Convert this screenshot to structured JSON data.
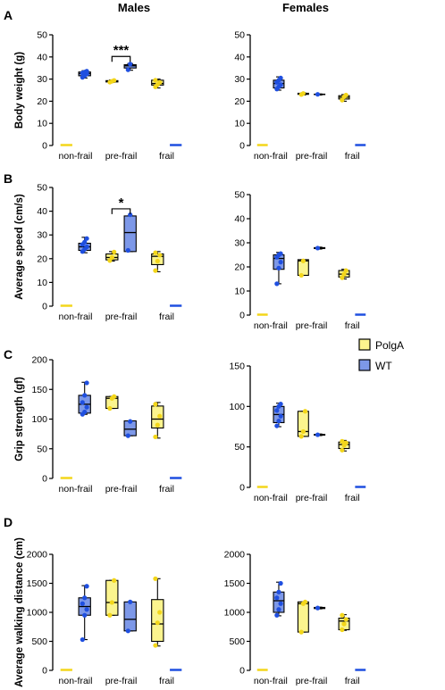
{
  "column_titles": [
    "Males",
    "Females"
  ],
  "row_letters": [
    "A",
    "B",
    "C",
    "D"
  ],
  "legend": [
    {
      "label": "PolgA",
      "color": "#fbf48e"
    },
    {
      "label": "WT",
      "color": "#7d98e8"
    }
  ],
  "colors": {
    "polga_fill": "#fbf48e",
    "polga_point": "#f3d61a",
    "wt_fill": "#7d98e8",
    "wt_point": "#1f4fe0"
  },
  "chart_data": [
    {
      "type": "box",
      "panel": "A",
      "sex": "Males",
      "ylabel": "Body weight (g)",
      "ylim": [
        0,
        50
      ],
      "yticks": [
        0,
        10,
        20,
        30,
        40,
        50
      ],
      "categories": [
        "non-frail",
        "pre-frail",
        "frail"
      ],
      "series": [
        {
          "name": "PolgA",
          "groups": [
            {
              "box": [
                0,
                0,
                0,
                0,
                0
              ],
              "points": []
            },
            {
              "box": [
                28.5,
                28.7,
                29,
                29.3,
                29.6
              ],
              "points": [
                28.6,
                29,
                29.4
              ]
            },
            {
              "box": [
                26,
                27.3,
                28,
                29.5,
                30
              ],
              "points": [
                26.5,
                27.5,
                28.5,
                29.5
              ]
            }
          ]
        },
        {
          "name": "WT",
          "groups": [
            {
              "box": [
                30.5,
                31.5,
                32.5,
                33.2,
                33.8
              ],
              "points": [
                30.8,
                31.5,
                32.3,
                32.8,
                33.2,
                33.6
              ]
            },
            {
              "box": [
                34,
                35,
                36,
                36.5,
                37
              ],
              "points": [
                34.2,
                36.8
              ]
            },
            {
              "box": [
                0,
                0,
                0,
                0,
                0
              ],
              "points": []
            }
          ]
        }
      ],
      "annotations": [
        {
          "text": "***",
          "between": "pre-frail"
        }
      ]
    },
    {
      "type": "box",
      "panel": "A",
      "sex": "Females",
      "ylabel": "",
      "ylim": [
        0,
        50
      ],
      "yticks": [
        0,
        10,
        20,
        30,
        40,
        50
      ],
      "categories": [
        "non-frail",
        "pre-frail",
        "frail"
      ],
      "series": [
        {
          "name": "PolgA",
          "groups": [
            {
              "box": [
                0,
                0,
                0,
                0,
                0
              ],
              "points": []
            },
            {
              "box": [
                22.8,
                23.1,
                23.4,
                23.6,
                23.8
              ],
              "points": [
                23,
                23.5
              ]
            },
            {
              "box": [
                20,
                21,
                21.8,
                22.5,
                23
              ],
              "points": [
                20.5,
                22,
                22.8
              ]
            }
          ]
        },
        {
          "name": "WT",
          "groups": [
            {
              "box": [
                25,
                26,
                28,
                29.5,
                31
              ],
              "points": [
                25.5,
                26.5,
                27.5,
                28.5,
                29.5,
                30.5
              ]
            },
            {
              "box": [
                22.8,
                23,
                23.1,
                23.2,
                23.3
              ],
              "points": [
                23.1
              ]
            },
            {
              "box": [
                0,
                0,
                0,
                0,
                0
              ],
              "points": []
            }
          ]
        }
      ],
      "annotations": []
    },
    {
      "type": "box",
      "panel": "B",
      "sex": "Males",
      "ylabel": "Average speed (cm/s)",
      "ylim": [
        0,
        50
      ],
      "yticks": [
        0,
        10,
        20,
        30,
        40,
        50
      ],
      "categories": [
        "non-frail",
        "pre-frail",
        "frail"
      ],
      "series": [
        {
          "name": "PolgA",
          "groups": [
            {
              "box": [
                0,
                0,
                0,
                0,
                0
              ],
              "points": []
            },
            {
              "box": [
                19,
                19.5,
                20.5,
                22,
                23
              ],
              "points": [
                19.2,
                20.5,
                22.8
              ]
            },
            {
              "box": [
                14.5,
                17.5,
                21,
                22,
                23
              ],
              "points": [
                15,
                19,
                21.5,
                22.5
              ]
            }
          ]
        },
        {
          "name": "WT",
          "groups": [
            {
              "box": [
                22.5,
                23.5,
                25,
                26.5,
                29
              ],
              "points": [
                23,
                24,
                25,
                26,
                27,
                28.5
              ]
            },
            {
              "box": [
                23,
                23,
                31,
                38,
                38
              ],
              "points": [
                23.5,
                38.5
              ]
            },
            {
              "box": [
                0,
                0,
                0,
                0,
                0
              ],
              "points": []
            }
          ]
        }
      ],
      "annotations": [
        {
          "text": "*",
          "between": "pre-frail"
        }
      ]
    },
    {
      "type": "box",
      "panel": "B",
      "sex": "Females",
      "ylabel": "",
      "ylim": [
        0,
        50
      ],
      "yticks": [
        0,
        10,
        20,
        30,
        40,
        50
      ],
      "categories": [
        "non-frail",
        "pre-frail",
        "frail"
      ],
      "series": [
        {
          "name": "PolgA",
          "groups": [
            {
              "box": [
                0,
                0,
                0,
                0,
                0
              ],
              "points": []
            },
            {
              "box": [
                16.5,
                16.5,
                22.5,
                23,
                23
              ],
              "points": [
                16.5,
                22.5
              ]
            },
            {
              "box": [
                15,
                15.8,
                17,
                18.5,
                19
              ],
              "points": [
                15.5,
                17,
                18.5
              ]
            }
          ]
        },
        {
          "name": "WT",
          "groups": [
            {
              "box": [
                13,
                19,
                23.5,
                25,
                26
              ],
              "points": [
                13,
                19.5,
                22,
                24,
                25,
                25.5
              ]
            },
            {
              "box": [
                27.4,
                27.6,
                27.8,
                28,
                28.2
              ],
              "points": [
                27.8
              ]
            },
            {
              "box": [
                0,
                0,
                0,
                0,
                0
              ],
              "points": []
            }
          ]
        }
      ],
      "annotations": []
    },
    {
      "type": "box",
      "panel": "C",
      "sex": "Males",
      "ylabel": "Grip strength (gf)",
      "ylim": [
        0,
        200
      ],
      "yticks": [
        0,
        50,
        100,
        150,
        200
      ],
      "categories": [
        "non-frail",
        "pre-frail",
        "frail"
      ],
      "series": [
        {
          "name": "PolgA",
          "groups": [
            {
              "box": [
                0,
                0,
                0,
                0,
                0
              ],
              "points": []
            },
            {
              "box": [
                118,
                118,
                135,
                138,
                138
              ],
              "points": [
                118,
                135,
                138
              ]
            },
            {
              "box": [
                68,
                85,
                100,
                122,
                128
              ],
              "points": [
                70,
                90,
                105,
                125
              ]
            }
          ]
        },
        {
          "name": "WT",
          "groups": [
            {
              "box": [
                108,
                110,
                125,
                140,
                162
              ],
              "points": [
                108,
                112,
                120,
                128,
                140,
                161
              ]
            },
            {
              "box": [
                72,
                72,
                83,
                97,
                97
              ],
              "points": [
                72,
                96
              ]
            },
            {
              "box": [
                0,
                0,
                0,
                0,
                0
              ],
              "points": []
            }
          ]
        }
      ],
      "annotations": []
    },
    {
      "type": "box",
      "panel": "C",
      "sex": "Females",
      "ylabel": "",
      "ylim": [
        0,
        150
      ],
      "yticks": [
        0,
        50,
        100,
        150
      ],
      "categories": [
        "non-frail",
        "pre-frail",
        "frail"
      ],
      "series": [
        {
          "name": "PolgA",
          "groups": [
            {
              "box": [
                0,
                0,
                0,
                0,
                0
              ],
              "points": []
            },
            {
              "box": [
                63,
                63,
                69,
                94,
                94
              ],
              "points": [
                63,
                69,
                94
              ]
            },
            {
              "box": [
                45,
                48,
                53,
                56,
                58
              ],
              "points": [
                46,
                52,
                55,
                57
              ]
            }
          ]
        },
        {
          "name": "WT",
          "groups": [
            {
              "box": [
                75,
                80,
                90,
                100,
                104
              ],
              "points": [
                76,
                82,
                88,
                95,
                100,
                103
              ]
            },
            {
              "box": [
                64,
                64.5,
                65,
                65.5,
                66
              ],
              "points": [
                65
              ]
            },
            {
              "box": [
                0,
                0,
                0,
                0,
                0
              ],
              "points": []
            }
          ]
        }
      ],
      "annotations": []
    },
    {
      "type": "box",
      "panel": "D",
      "sex": "Males",
      "ylabel": "Average walking distance (cm)",
      "ylim": [
        0,
        2000
      ],
      "yticks": [
        0,
        500,
        1000,
        1500,
        2000
      ],
      "categories": [
        "non-frail",
        "pre-frail",
        "frail"
      ],
      "series": [
        {
          "name": "PolgA",
          "groups": [
            {
              "box": [
                0,
                0,
                0,
                0,
                0
              ],
              "points": []
            },
            {
              "box": [
                950,
                950,
                1170,
                1550,
                1550
              ],
              "points": [
                950,
                1170,
                1550
              ]
            },
            {
              "box": [
                420,
                500,
                800,
                1220,
                1580
              ],
              "points": [
                430,
                820,
                1000,
                1580
              ]
            }
          ]
        },
        {
          "name": "WT",
          "groups": [
            {
              "box": [
                530,
                950,
                1100,
                1250,
                1460
              ],
              "points": [
                530,
                950,
                1050,
                1150,
                1250,
                1450
              ]
            },
            {
              "box": [
                680,
                680,
                880,
                1180,
                1180
              ],
              "points": [
                680,
                1180
              ]
            },
            {
              "box": [
                0,
                0,
                0,
                0,
                0
              ],
              "points": []
            }
          ]
        }
      ],
      "annotations": []
    },
    {
      "type": "box",
      "panel": "D",
      "sex": "Females",
      "ylabel": "",
      "ylim": [
        0,
        2000
      ],
      "yticks": [
        0,
        500,
        1000,
        1500,
        2000
      ],
      "categories": [
        "non-frail",
        "pre-frail",
        "frail"
      ],
      "series": [
        {
          "name": "PolgA",
          "groups": [
            {
              "box": [
                0,
                0,
                0,
                0,
                0
              ],
              "points": []
            },
            {
              "box": [
                660,
                660,
                1150,
                1180,
                1180
              ],
              "points": [
                660,
                1150,
                1180
              ]
            },
            {
              "box": [
                690,
                700,
                850,
                900,
                960
              ],
              "points": [
                700,
                800,
                880,
                950
              ]
            }
          ]
        },
        {
          "name": "WT",
          "groups": [
            {
              "box": [
                940,
                1000,
                1200,
                1350,
                1520
              ],
              "points": [
                950,
                1050,
                1150,
                1250,
                1350,
                1500
              ]
            },
            {
              "box": [
                1060,
                1065,
                1075,
                1085,
                1090
              ],
              "points": [
                1075
              ]
            },
            {
              "box": [
                0,
                0,
                0,
                0,
                0
              ],
              "points": []
            }
          ]
        }
      ],
      "annotations": []
    }
  ]
}
